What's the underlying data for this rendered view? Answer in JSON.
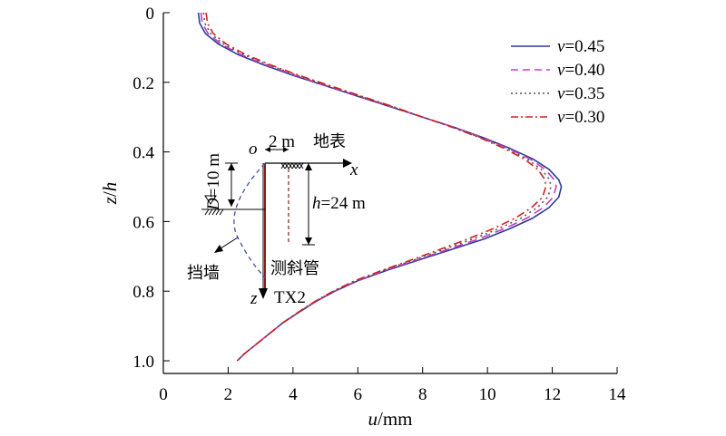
{
  "chart_data": {
    "type": "line",
    "xlabel": {
      "var": "u",
      "unit": "/mm"
    },
    "ylabel": {
      "var": "z",
      "sep": "/",
      "var2": "h"
    },
    "xlim": [
      0,
      14
    ],
    "ylim": [
      0,
      1.0
    ],
    "y_inverted": true,
    "x_ticks": [
      "0",
      "2",
      "4",
      "6",
      "8",
      "10",
      "12",
      "14"
    ],
    "y_ticks": [
      "0",
      "0.2",
      "0.4",
      "0.6",
      "0.8",
      "1.0"
    ],
    "x_tick_values": [
      0,
      2,
      4,
      6,
      8,
      10,
      12,
      14
    ],
    "y_tick_values": [
      0,
      0.2,
      0.4,
      0.6,
      0.8,
      1.0
    ],
    "legend_position": "top-right",
    "series": [
      {
        "symbol": "v",
        "value": "=0.45",
        "color": "#2b3a9a",
        "dash": "solid",
        "points": [
          [
            1.08,
            0.0
          ],
          [
            1.12,
            0.03
          ],
          [
            1.3,
            0.06
          ],
          [
            1.7,
            0.09
          ],
          [
            2.3,
            0.12
          ],
          [
            3.1,
            0.15
          ],
          [
            4.0,
            0.18
          ],
          [
            5.0,
            0.21
          ],
          [
            6.0,
            0.24
          ],
          [
            7.0,
            0.27
          ],
          [
            8.0,
            0.3
          ],
          [
            9.0,
            0.33
          ],
          [
            9.9,
            0.36
          ],
          [
            10.7,
            0.39
          ],
          [
            11.4,
            0.42
          ],
          [
            11.9,
            0.45
          ],
          [
            12.2,
            0.48
          ],
          [
            12.28,
            0.5
          ],
          [
            12.2,
            0.53
          ],
          [
            11.9,
            0.56
          ],
          [
            11.4,
            0.59
          ],
          [
            10.7,
            0.62
          ],
          [
            9.9,
            0.65
          ],
          [
            8.9,
            0.68
          ],
          [
            7.9,
            0.71
          ],
          [
            6.9,
            0.74
          ],
          [
            6.0,
            0.77
          ],
          [
            5.3,
            0.8
          ],
          [
            4.7,
            0.83
          ],
          [
            4.2,
            0.86
          ],
          [
            3.7,
            0.89
          ],
          [
            3.3,
            0.92
          ],
          [
            2.9,
            0.95
          ],
          [
            2.5,
            0.98
          ],
          [
            2.28,
            1.0
          ]
        ]
      },
      {
        "symbol": "v",
        "value": "=0.40",
        "color": "#c040c0",
        "dash": "10,6",
        "points": [
          [
            1.16,
            0.0
          ],
          [
            1.2,
            0.03
          ],
          [
            1.38,
            0.06
          ],
          [
            1.78,
            0.09
          ],
          [
            2.38,
            0.12
          ],
          [
            3.17,
            0.15
          ],
          [
            4.06,
            0.18
          ],
          [
            5.05,
            0.21
          ],
          [
            6.04,
            0.24
          ],
          [
            7.03,
            0.27
          ],
          [
            8.0,
            0.3
          ],
          [
            8.98,
            0.33
          ],
          [
            9.86,
            0.36
          ],
          [
            10.64,
            0.39
          ],
          [
            11.31,
            0.42
          ],
          [
            11.78,
            0.45
          ],
          [
            12.06,
            0.48
          ],
          [
            12.12,
            0.5
          ],
          [
            12.03,
            0.53
          ],
          [
            11.72,
            0.56
          ],
          [
            11.22,
            0.59
          ],
          [
            10.53,
            0.62
          ],
          [
            9.73,
            0.65
          ],
          [
            8.78,
            0.68
          ],
          [
            7.82,
            0.71
          ],
          [
            6.85,
            0.74
          ],
          [
            5.97,
            0.77
          ],
          [
            5.28,
            0.8
          ],
          [
            4.69,
            0.83
          ],
          [
            4.19,
            0.86
          ],
          [
            3.7,
            0.89
          ],
          [
            3.3,
            0.92
          ],
          [
            2.9,
            0.95
          ],
          [
            2.5,
            0.98
          ],
          [
            2.28,
            1.0
          ]
        ]
      },
      {
        "symbol": "v",
        "value": "=0.35",
        "color": "#555555",
        "dash": "2,4",
        "points": [
          [
            1.24,
            0.0
          ],
          [
            1.28,
            0.03
          ],
          [
            1.46,
            0.06
          ],
          [
            1.86,
            0.09
          ],
          [
            2.46,
            0.12
          ],
          [
            3.24,
            0.15
          ],
          [
            4.12,
            0.18
          ],
          [
            5.1,
            0.21
          ],
          [
            6.08,
            0.24
          ],
          [
            7.06,
            0.27
          ],
          [
            8.0,
            0.3
          ],
          [
            8.96,
            0.33
          ],
          [
            9.82,
            0.36
          ],
          [
            10.58,
            0.39
          ],
          [
            11.22,
            0.42
          ],
          [
            11.66,
            0.45
          ],
          [
            11.92,
            0.48
          ],
          [
            11.96,
            0.5
          ],
          [
            11.86,
            0.53
          ],
          [
            11.54,
            0.56
          ],
          [
            11.04,
            0.59
          ],
          [
            10.36,
            0.62
          ],
          [
            9.56,
            0.65
          ],
          [
            8.66,
            0.68
          ],
          [
            7.74,
            0.71
          ],
          [
            6.8,
            0.74
          ],
          [
            5.94,
            0.77
          ],
          [
            5.26,
            0.8
          ],
          [
            4.68,
            0.83
          ],
          [
            4.18,
            0.86
          ],
          [
            3.7,
            0.89
          ],
          [
            3.3,
            0.92
          ],
          [
            2.9,
            0.95
          ],
          [
            2.5,
            0.98
          ],
          [
            2.28,
            1.0
          ]
        ]
      },
      {
        "symbol": "v",
        "value": "=0.30",
        "color": "#d42020",
        "dash": "9,4,2,4",
        "points": [
          [
            1.32,
            0.0
          ],
          [
            1.36,
            0.03
          ],
          [
            1.54,
            0.06
          ],
          [
            1.94,
            0.09
          ],
          [
            2.54,
            0.12
          ],
          [
            3.31,
            0.15
          ],
          [
            4.18,
            0.18
          ],
          [
            5.15,
            0.21
          ],
          [
            6.12,
            0.24
          ],
          [
            7.09,
            0.27
          ],
          [
            8.0,
            0.3
          ],
          [
            8.94,
            0.33
          ],
          [
            9.78,
            0.36
          ],
          [
            10.52,
            0.39
          ],
          [
            11.13,
            0.42
          ],
          [
            11.55,
            0.45
          ],
          [
            11.78,
            0.48
          ],
          [
            11.8,
            0.5
          ],
          [
            11.7,
            0.53
          ],
          [
            11.36,
            0.56
          ],
          [
            10.86,
            0.59
          ],
          [
            10.19,
            0.62
          ],
          [
            9.39,
            0.65
          ],
          [
            8.54,
            0.68
          ],
          [
            7.66,
            0.71
          ],
          [
            6.75,
            0.74
          ],
          [
            5.91,
            0.77
          ],
          [
            5.24,
            0.8
          ],
          [
            4.67,
            0.83
          ],
          [
            4.17,
            0.86
          ],
          [
            3.7,
            0.89
          ],
          [
            3.3,
            0.92
          ],
          [
            2.9,
            0.95
          ],
          [
            2.5,
            0.98
          ],
          [
            2.28,
            1.0
          ]
        ]
      }
    ],
    "inset": {
      "origin": "o",
      "offset": "2 m",
      "ground": "地表",
      "x_axis": "x",
      "z_axis": "z",
      "depth_var": "D",
      "depth_val": "=10 m",
      "height_var": "h",
      "height_val": "=24 m",
      "wall": "挡墙",
      "inclinometer": "测斜管",
      "inclinometer_id": "TX2"
    }
  }
}
